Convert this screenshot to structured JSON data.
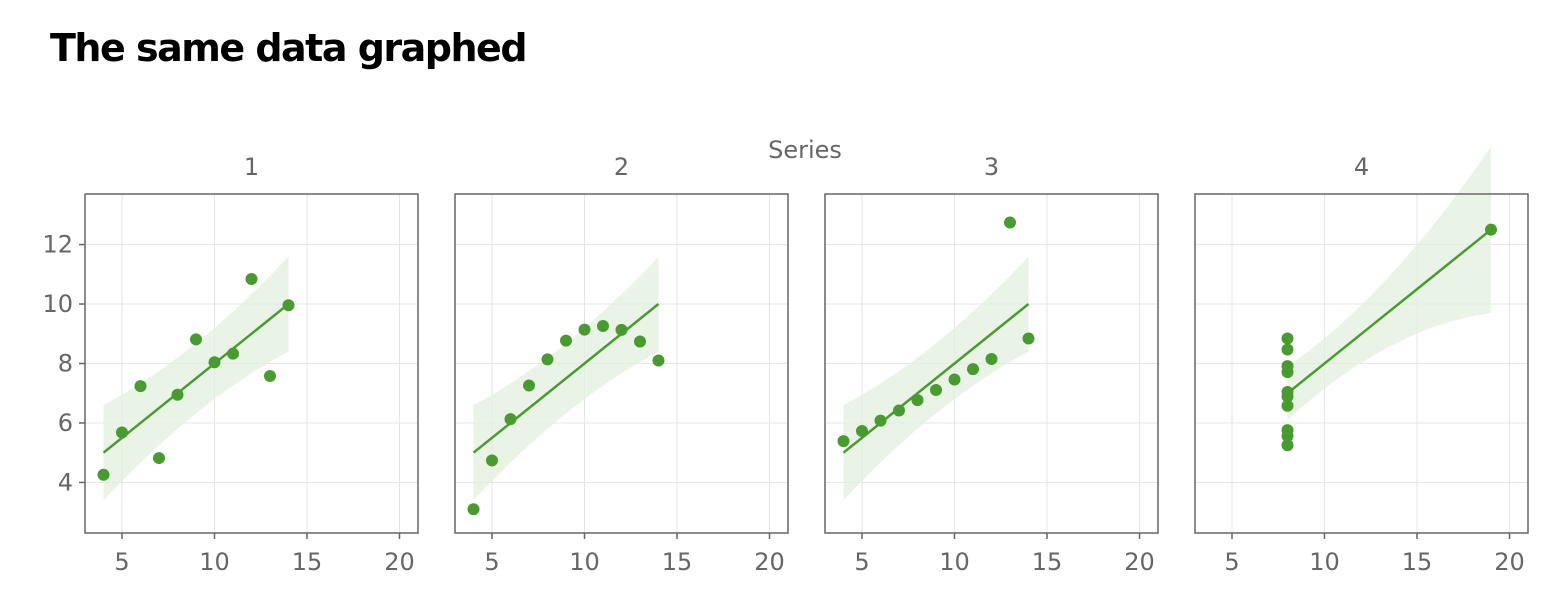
{
  "page": {
    "title": "The same data graphed"
  },
  "chart_data": {
    "type": "scatter",
    "facet_label": "Series",
    "xlim": [
      3,
      21
    ],
    "ylim": [
      2.3,
      13.7
    ],
    "x_ticks": [
      5,
      10,
      15,
      20
    ],
    "y_ticks": [
      4,
      6,
      8,
      10,
      12
    ],
    "grid": true,
    "colors": {
      "points": "#4a9a32",
      "band": "#e3f0dd",
      "frame": "#666666",
      "grid": "#e6e6e6"
    },
    "panels": [
      {
        "label": "1",
        "x": [
          10,
          8,
          13,
          9,
          11,
          14,
          6,
          4,
          12,
          7,
          5
        ],
        "y": [
          8.04,
          6.95,
          7.58,
          8.81,
          8.33,
          9.96,
          7.24,
          4.26,
          10.84,
          4.82,
          5.68
        ],
        "fit": {
          "x": [
            4,
            14
          ],
          "y": [
            5.0,
            10.0
          ]
        },
        "band": {
          "x": [
            4,
            14
          ],
          "lower": [
            3.4,
            8.4
          ],
          "upper": [
            6.6,
            11.6
          ]
        }
      },
      {
        "label": "2",
        "x": [
          10,
          8,
          13,
          9,
          11,
          14,
          6,
          4,
          12,
          7,
          5
        ],
        "y": [
          9.14,
          8.14,
          8.74,
          8.77,
          9.26,
          8.1,
          6.13,
          3.1,
          9.13,
          7.26,
          4.74
        ],
        "fit": {
          "x": [
            4,
            14
          ],
          "y": [
            5.0,
            10.0
          ]
        },
        "band": {
          "x": [
            4,
            14
          ],
          "lower": [
            3.4,
            8.4
          ],
          "upper": [
            6.6,
            11.6
          ]
        }
      },
      {
        "label": "3",
        "x": [
          10,
          8,
          13,
          9,
          11,
          14,
          6,
          4,
          12,
          7,
          5
        ],
        "y": [
          7.46,
          6.77,
          12.74,
          7.11,
          7.81,
          8.84,
          6.08,
          5.39,
          8.15,
          6.42,
          5.73
        ],
        "fit": {
          "x": [
            4,
            14
          ],
          "y": [
            5.0,
            10.0
          ]
        },
        "band": {
          "x": [
            4,
            14
          ],
          "lower": [
            3.4,
            8.4
          ],
          "upper": [
            6.6,
            11.6
          ]
        }
      },
      {
        "label": "4",
        "x": [
          8,
          8,
          8,
          8,
          8,
          8,
          8,
          19,
          8,
          8,
          8
        ],
        "y": [
          6.58,
          5.76,
          7.71,
          8.84,
          8.47,
          7.04,
          5.25,
          12.5,
          5.56,
          7.91,
          6.89
        ],
        "fit": {
          "x": [
            8,
            19
          ],
          "y": [
            7.0,
            12.5
          ]
        },
        "band": {
          "x": [
            8,
            19
          ],
          "lower": [
            6.1,
            9.7
          ],
          "upper": [
            7.9,
            15.3
          ]
        }
      }
    ]
  }
}
